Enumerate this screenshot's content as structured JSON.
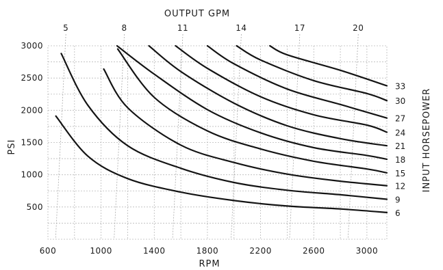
{
  "chart_data": {
    "type": "line",
    "top_axis_label": "OUTPUT GPM",
    "top_ticks": [
      {
        "label": "5",
        "rpm": 735
      },
      {
        "label": "8",
        "rpm": 1175
      },
      {
        "label": "11",
        "rpm": 1615
      },
      {
        "label": "14",
        "rpm": 2055
      },
      {
        "label": "17",
        "rpm": 2495
      },
      {
        "label": "20",
        "rpm": 2935
      }
    ],
    "xlabel": "RPM",
    "ylabel": "PSI",
    "right_label": "INPUT HORSEPOWER",
    "xlim": [
      600,
      3150
    ],
    "ylim": [
      0,
      3000
    ],
    "x_ticks": [
      {
        "value": 600,
        "label": "600"
      },
      {
        "value": 1000,
        "label": "1000"
      },
      {
        "value": 1400,
        "label": "1400"
      },
      {
        "value": 1800,
        "label": "1800"
      },
      {
        "value": 2200,
        "label": "2200"
      },
      {
        "value": 2600,
        "label": "2600"
      },
      {
        "value": 3000,
        "label": "3000"
      }
    ],
    "y_ticks": [
      {
        "value": 500,
        "label": "500"
      },
      {
        "value": 1000,
        "label": "1000"
      },
      {
        "value": 1500,
        "label": "1500"
      },
      {
        "value": 2000,
        "label": "2000"
      },
      {
        "value": 2500,
        "label": "2500"
      },
      {
        "value": 3000,
        "label": "3000"
      }
    ],
    "grid": true,
    "series": [
      {
        "name": "6",
        "points": [
          [
            660,
            1910
          ],
          [
            900,
            1290
          ],
          [
            1200,
            940
          ],
          [
            1600,
            730
          ],
          [
            2000,
            600
          ],
          [
            2400,
            515
          ],
          [
            2800,
            470
          ],
          [
            3150,
            415
          ]
        ]
      },
      {
        "name": "9",
        "points": [
          [
            700,
            2880
          ],
          [
            900,
            2080
          ],
          [
            1200,
            1450
          ],
          [
            1600,
            1100
          ],
          [
            2000,
            880
          ],
          [
            2400,
            760
          ],
          [
            2800,
            690
          ],
          [
            3150,
            620
          ]
        ]
      },
      {
        "name": "12",
        "points": [
          [
            1020,
            2640
          ],
          [
            1200,
            2040
          ],
          [
            1600,
            1460
          ],
          [
            2000,
            1190
          ],
          [
            2400,
            1010
          ],
          [
            2800,
            900
          ],
          [
            3150,
            830
          ]
        ]
      },
      {
        "name": "15",
        "points": [
          [
            1125,
            2950
          ],
          [
            1400,
            2200
          ],
          [
            1800,
            1680
          ],
          [
            2200,
            1400
          ],
          [
            2600,
            1210
          ],
          [
            3000,
            1090
          ],
          [
            3150,
            1030
          ]
        ]
      },
      {
        "name": "18",
        "points": [
          [
            1120,
            3000
          ],
          [
            1400,
            2560
          ],
          [
            1800,
            2010
          ],
          [
            2200,
            1650
          ],
          [
            2600,
            1420
          ],
          [
            3000,
            1300
          ],
          [
            3150,
            1240
          ]
        ]
      },
      {
        "name": "21",
        "points": [
          [
            1360,
            3000
          ],
          [
            1600,
            2600
          ],
          [
            2000,
            2110
          ],
          [
            2400,
            1760
          ],
          [
            2800,
            1560
          ],
          [
            3150,
            1450
          ]
        ]
      },
      {
        "name": "24",
        "points": [
          [
            1560,
            3000
          ],
          [
            1800,
            2650
          ],
          [
            2200,
            2210
          ],
          [
            2600,
            1930
          ],
          [
            3000,
            1770
          ],
          [
            3150,
            1660
          ]
        ]
      },
      {
        "name": "27",
        "points": [
          [
            1800,
            3000
          ],
          [
            2000,
            2720
          ],
          [
            2400,
            2330
          ],
          [
            2800,
            2090
          ],
          [
            3150,
            1880
          ]
        ]
      },
      {
        "name": "30",
        "points": [
          [
            2020,
            3000
          ],
          [
            2200,
            2780
          ],
          [
            2600,
            2460
          ],
          [
            3000,
            2260
          ],
          [
            3150,
            2150
          ]
        ]
      },
      {
        "name": "33",
        "points": [
          [
            2270,
            3000
          ],
          [
            2400,
            2860
          ],
          [
            2800,
            2620
          ],
          [
            3150,
            2380
          ]
        ]
      }
    ]
  }
}
